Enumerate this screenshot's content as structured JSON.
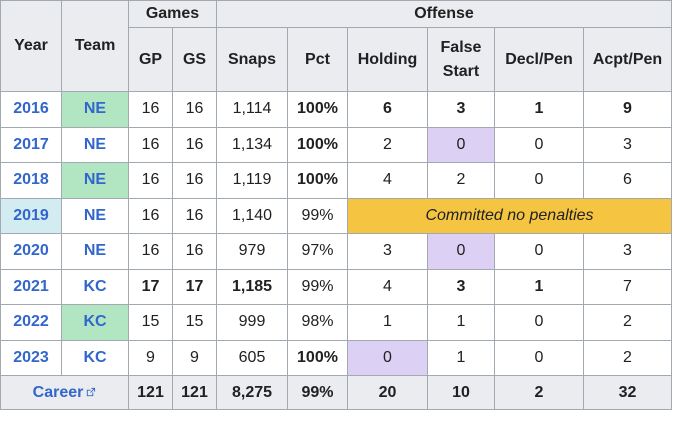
{
  "header": {
    "year": "Year",
    "team": "Team",
    "games": "Games",
    "offense": "Offense",
    "gp": "GP",
    "gs": "GS",
    "snaps": "Snaps",
    "pct": "Pct",
    "holding": "Holding",
    "false_start_1": "False",
    "false_start_2": "Start",
    "decl_pen": "Decl/Pen",
    "acpt_pen": "Acpt/Pen"
  },
  "rows": [
    {
      "year": "2016",
      "team": "NE",
      "gp": "16",
      "gs": "16",
      "snaps": "1,114",
      "pct": "100%",
      "holding": "6",
      "false_start": "3",
      "decl": "1",
      "acpt": "9"
    },
    {
      "year": "2017",
      "team": "NE",
      "gp": "16",
      "gs": "16",
      "snaps": "1,134",
      "pct": "100%",
      "holding": "2",
      "false_start": "0",
      "decl": "0",
      "acpt": "3"
    },
    {
      "year": "2018",
      "team": "NE",
      "gp": "16",
      "gs": "16",
      "snaps": "1,119",
      "pct": "100%",
      "holding": "4",
      "false_start": "2",
      "decl": "0",
      "acpt": "6"
    },
    {
      "year": "2019",
      "team": "NE",
      "gp": "16",
      "gs": "16",
      "snaps": "1,140",
      "pct": "99%",
      "note": "Committed no penalties"
    },
    {
      "year": "2020",
      "team": "NE",
      "gp": "16",
      "gs": "16",
      "snaps": "979",
      "pct": "97%",
      "holding": "3",
      "false_start": "0",
      "decl": "0",
      "acpt": "3"
    },
    {
      "year": "2021",
      "team": "KC",
      "gp": "17",
      "gs": "17",
      "snaps": "1,185",
      "pct": "99%",
      "holding": "4",
      "false_start": "3",
      "decl": "1",
      "acpt": "7"
    },
    {
      "year": "2022",
      "team": "KC",
      "gp": "15",
      "gs": "15",
      "snaps": "999",
      "pct": "98%",
      "holding": "1",
      "false_start": "1",
      "decl": "0",
      "acpt": "2"
    },
    {
      "year": "2023",
      "team": "KC",
      "gp": "9",
      "gs": "9",
      "snaps": "605",
      "pct": "100%",
      "holding": "0",
      "false_start": "1",
      "decl": "0",
      "acpt": "2"
    }
  ],
  "career": {
    "label": "Career",
    "icon": "external-link-icon",
    "gp": "121",
    "gs": "121",
    "snaps": "8,275",
    "pct": "99%",
    "holding": "20",
    "false_start": "10",
    "decl": "2",
    "acpt": "32"
  },
  "colors": {
    "link": "#3366cc",
    "header_bg": "#eaecf0",
    "border": "#a2a9b1",
    "green_highlight": "#b2e6c3",
    "purple_highlight": "#dcd0f5",
    "blue_highlight": "#d3ecf2",
    "yellow_note": "#f5c542"
  }
}
